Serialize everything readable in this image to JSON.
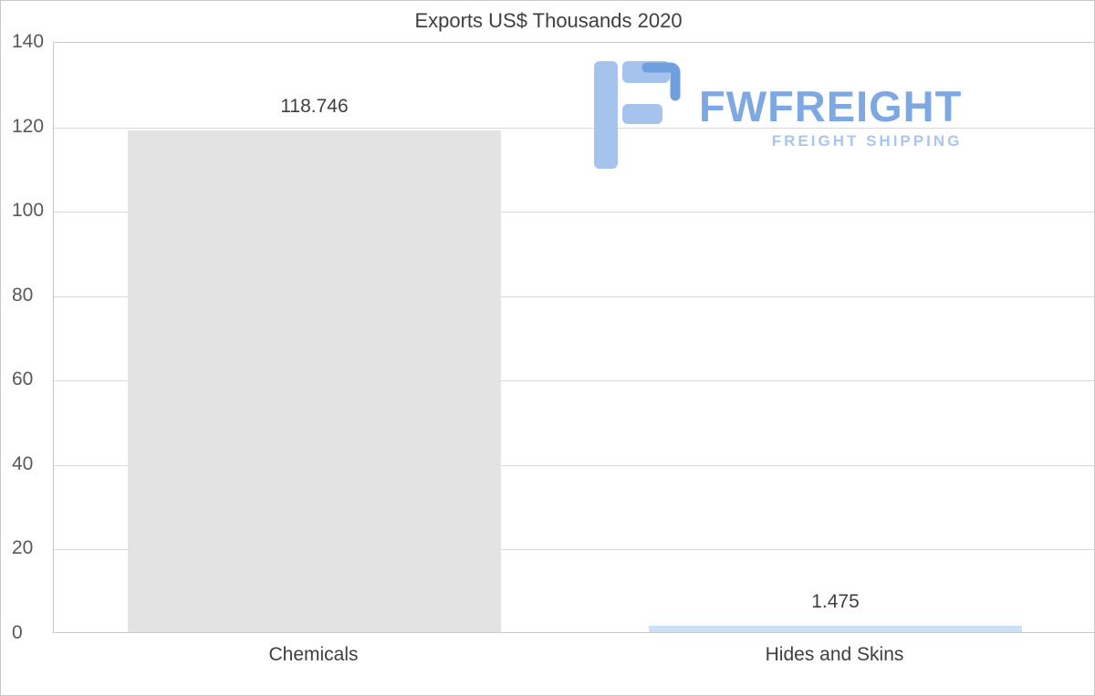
{
  "chart_data": {
    "type": "bar",
    "title": "Exports US$ Thousands 2020",
    "categories": [
      "Chemicals",
      "Hides and Skins"
    ],
    "values": [
      118.746,
      1.475
    ],
    "value_labels": [
      "118.746",
      "1.475"
    ],
    "xlabel": "",
    "ylabel": "",
    "ylim": [
      0,
      140
    ],
    "yticks": [
      0,
      20,
      40,
      60,
      80,
      100,
      120,
      140
    ],
    "grid": true,
    "legend": "none",
    "bar_colors": [
      "#e3e3e3",
      "#cce0f5"
    ]
  },
  "logo": {
    "name": "FWFREIGHT",
    "tagline": "FREIGHT SHIPPING",
    "brand_color": "#7da8e2",
    "light_color": "#a9c6ee"
  }
}
